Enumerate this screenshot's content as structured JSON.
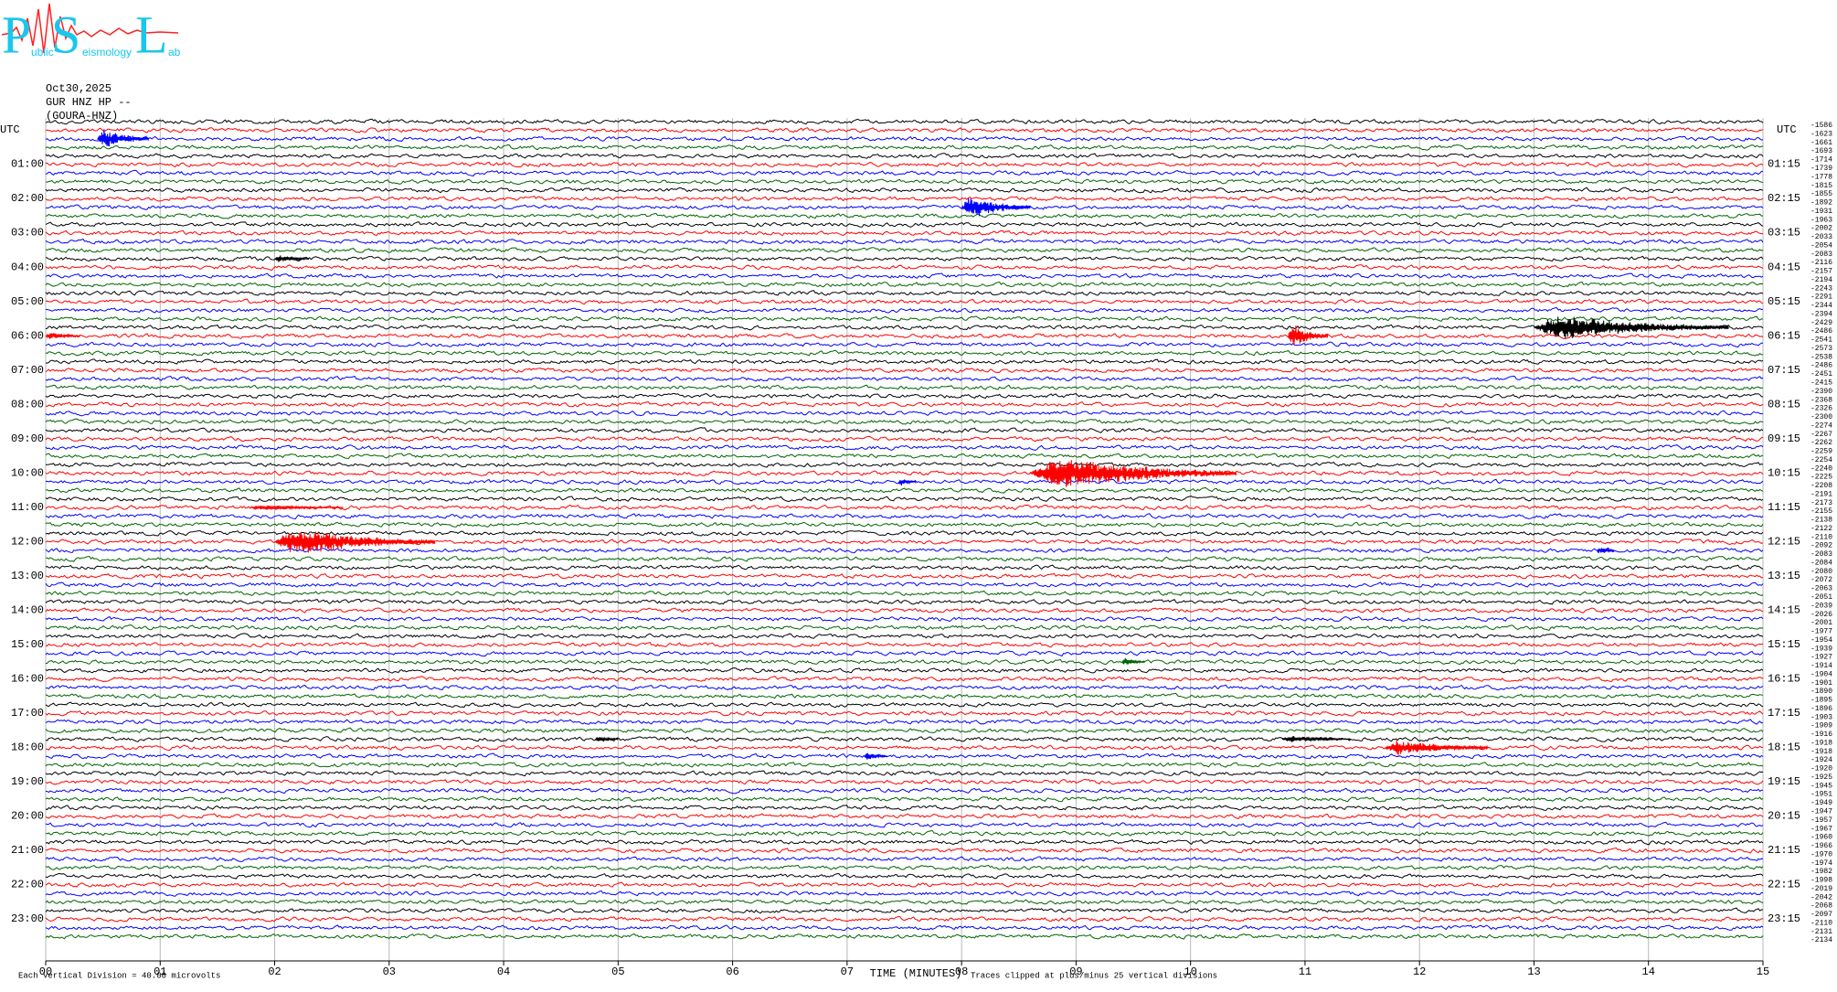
{
  "logo": {
    "letters": [
      "P",
      "S",
      "L"
    ],
    "words": [
      "ublic",
      "eismology",
      "ab"
    ]
  },
  "chart_data": {
    "type": "helicorder",
    "date": "Oct30,2025",
    "station": "GUR HNZ HP --",
    "channel": "(GOURA-HNZ)",
    "timezone": "UTC",
    "row_labels_left": [
      "01:00",
      "02:00",
      "03:00",
      "04:00",
      "05:00",
      "06:00",
      "07:00",
      "08:00",
      "09:00",
      "10:00",
      "11:00",
      "12:00",
      "13:00",
      "14:00",
      "15:00",
      "16:00",
      "17:00",
      "18:00",
      "19:00",
      "20:00",
      "21:00",
      "22:00",
      "23:00"
    ],
    "row_labels_right": [
      "01:15",
      "02:15",
      "03:15",
      "04:15",
      "05:15",
      "06:15",
      "07:15",
      "08:15",
      "09:15",
      "10:15",
      "11:15",
      "12:15",
      "13:15",
      "14:15",
      "15:15",
      "16:15",
      "17:15",
      "18:15",
      "19:15",
      "20:15",
      "21:15",
      "22:15",
      "23:15"
    ],
    "offsets": [
      -1586,
      -1623,
      -1661,
      -1693,
      -1714,
      -1739,
      -1778,
      -1815,
      -1855,
      -1892,
      -1931,
      -1963,
      -2002,
      -2033,
      -2054,
      -2083,
      -2116,
      -2157,
      -2194,
      -2243,
      -2291,
      -2344,
      -2394,
      -2429,
      -2486,
      -2541,
      -2573,
      -2538,
      -2486,
      -2451,
      -2415,
      -2390,
      -2368,
      -2326,
      -2300,
      -2274,
      -2267,
      -2262,
      -2259,
      -2254,
      -2240,
      -2225,
      -2208,
      -2191,
      -2173,
      -2155,
      -2138,
      -2122,
      -2110,
      -2092,
      -2083,
      -2084,
      -2080,
      -2072,
      -2063,
      -2051,
      -2039,
      -2026,
      -2001,
      -1977,
      -1954,
      -1939,
      -1927,
      -1914,
      -1904,
      -1901,
      -1890,
      -1895,
      -1896,
      -1903,
      -1909,
      -1916,
      -1918,
      -1918,
      -1924,
      -1920,
      -1925,
      -1945,
      -1951,
      -1949,
      -1947,
      -1957,
      -1967,
      -1960,
      -1966,
      -1970,
      -1974,
      -1982,
      -1998,
      -2019,
      -2042,
      -2068,
      -2097,
      -2110,
      -2131,
      -2134
    ],
    "colors": [
      "#000000",
      "#ff0000",
      "#0000ff",
      "#006400"
    ],
    "xlim": [
      0,
      15
    ],
    "xticks": [
      {
        "value": 0,
        "label": "00"
      },
      {
        "value": 1,
        "label": "01"
      },
      {
        "value": 2,
        "label": "02"
      },
      {
        "value": 3,
        "label": "03"
      },
      {
        "value": 4,
        "label": "04"
      },
      {
        "value": 5,
        "label": "05"
      },
      {
        "value": 6,
        "label": "06"
      },
      {
        "value": 7,
        "label": "07"
      },
      {
        "value": 8,
        "label": "08"
      },
      {
        "value": 9,
        "label": "09"
      },
      10,
      11,
      12,
      13,
      14,
      15
    ],
    "xlabel": "TIME (MINUTES)",
    "scale_note": "Each Vertical Division =   40.00 microvolts",
    "clip_note": "Traces clipped at plus/minus 25 vertical divisions",
    "grid": true,
    "events": [
      {
        "row": 2,
        "start": 0.45,
        "end": 0.9,
        "amplitude": 16
      },
      {
        "row": 10,
        "start": 8.0,
        "end": 8.6,
        "amplitude": 18
      },
      {
        "row": 16,
        "start": 2.0,
        "end": 2.3,
        "amplitude": 7
      },
      {
        "row": 24,
        "start": 13.0,
        "end": 14.7,
        "amplitude": 20
      },
      {
        "row": 25,
        "start": 10.85,
        "end": 11.2,
        "amplitude": 20
      },
      {
        "row": 25,
        "start": 0.0,
        "end": 0.3,
        "amplitude": 6
      },
      {
        "row": 41,
        "start": 8.6,
        "end": 10.4,
        "amplitude": 26
      },
      {
        "row": 42,
        "start": 7.45,
        "end": 7.6,
        "amplitude": 7
      },
      {
        "row": 45,
        "start": 1.8,
        "end": 2.6,
        "amplitude": 4
      },
      {
        "row": 49,
        "start": 2.0,
        "end": 3.4,
        "amplitude": 22
      },
      {
        "row": 50,
        "start": 13.55,
        "end": 13.7,
        "amplitude": 7
      },
      {
        "row": 63,
        "start": 9.4,
        "end": 9.6,
        "amplitude": 7
      },
      {
        "row": 72,
        "start": 10.8,
        "end": 11.4,
        "amplitude": 5
      },
      {
        "row": 72,
        "start": 4.8,
        "end": 5.0,
        "amplitude": 5
      },
      {
        "row": 73,
        "start": 11.7,
        "end": 12.6,
        "amplitude": 13
      },
      {
        "row": 74,
        "start": 7.15,
        "end": 7.35,
        "amplitude": 6
      }
    ]
  }
}
